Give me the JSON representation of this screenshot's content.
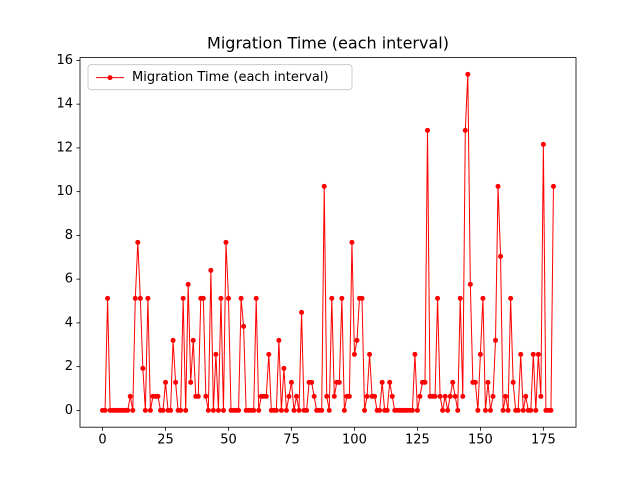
{
  "chart_data": {
    "type": "line",
    "title": "Migration Time  (each interval)",
    "x": [
      0,
      1,
      2,
      3,
      4,
      5,
      6,
      7,
      8,
      9,
      10,
      11,
      12,
      13,
      14,
      15,
      16,
      17,
      18,
      19,
      20,
      21,
      22,
      23,
      24,
      25,
      26,
      27,
      28,
      29,
      30,
      31,
      32,
      33,
      34,
      35,
      36,
      37,
      38,
      39,
      40,
      41,
      42,
      43,
      44,
      45,
      46,
      47,
      48,
      49,
      50,
      51,
      52,
      53,
      54,
      55,
      56,
      57,
      58,
      59,
      60,
      61,
      62,
      63,
      64,
      65,
      66,
      67,
      68,
      69,
      70,
      71,
      72,
      73,
      74,
      75,
      76,
      77,
      78,
      79,
      80,
      81,
      82,
      83,
      84,
      85,
      86,
      87,
      88,
      89,
      90,
      91,
      92,
      93,
      94,
      95,
      96,
      97,
      98,
      99,
      100,
      101,
      102,
      103,
      104,
      105,
      106,
      107,
      108,
      109,
      110,
      111,
      112,
      113,
      114,
      115,
      116,
      117,
      118,
      119,
      120,
      121,
      122,
      123,
      124,
      125,
      126,
      127,
      128,
      129,
      130,
      131,
      132,
      133,
      134,
      135,
      136,
      137,
      138,
      139,
      140,
      141,
      142,
      143,
      144,
      145,
      146,
      147,
      148,
      149,
      150,
      151,
      152,
      153,
      154,
      155,
      156,
      157,
      158,
      159,
      160,
      161,
      162,
      163,
      164,
      165,
      166,
      167,
      168,
      169,
      170,
      171,
      172,
      173,
      174,
      175,
      176,
      177,
      178,
      179
    ],
    "series": [
      {
        "name": "Migration Time  (each interval)",
        "color": "#ff0000",
        "values": [
          0,
          0,
          5.12,
          0,
          0,
          0,
          0,
          0,
          0,
          0,
          0,
          0.64,
          0,
          5.12,
          7.68,
          5.12,
          1.92,
          0,
          5.12,
          0,
          0.64,
          0.64,
          0.64,
          0,
          0,
          1.28,
          0,
          0,
          3.2,
          1.28,
          0,
          0,
          5.12,
          0,
          5.76,
          1.28,
          3.2,
          0.64,
          0.64,
          5.12,
          5.12,
          0.64,
          0,
          6.4,
          0,
          2.56,
          0,
          5.12,
          0,
          7.68,
          5.12,
          0,
          0,
          0,
          0,
          5.12,
          3.84,
          0,
          0,
          0,
          0,
          5.12,
          0,
          0.64,
          0.64,
          0.64,
          2.56,
          0,
          0,
          0,
          3.2,
          0,
          1.92,
          0,
          0.64,
          1.28,
          0,
          0.64,
          0,
          4.48,
          0,
          0,
          1.28,
          1.28,
          0.64,
          0,
          0,
          0,
          10.24,
          0.64,
          0,
          5.12,
          0.64,
          1.28,
          1.28,
          5.12,
          0,
          0.64,
          0.64,
          7.68,
          2.56,
          3.2,
          5.12,
          5.12,
          0,
          0.64,
          2.56,
          0.64,
          0.64,
          0,
          0,
          1.28,
          0,
          0,
          1.28,
          0.64,
          0,
          0,
          0,
          0,
          0,
          0,
          0,
          0,
          2.56,
          0,
          0.64,
          1.28,
          1.28,
          12.8,
          0.64,
          0.64,
          0.64,
          5.12,
          0.64,
          0,
          0.64,
          0,
          0.64,
          1.28,
          0.64,
          0,
          5.12,
          0.64,
          12.8,
          15.36,
          5.76,
          1.28,
          1.28,
          0,
          2.56,
          5.12,
          0,
          1.28,
          0,
          0.64,
          3.2,
          10.24,
          7.04,
          0,
          0.64,
          0,
          5.12,
          1.28,
          0,
          0,
          2.56,
          0,
          0.64,
          0,
          0,
          2.56,
          0,
          2.56,
          0.64,
          12.16,
          0,
          0,
          0,
          10.24
        ]
      }
    ],
    "xlim": [
      -8.95,
      187.95
    ],
    "xticks": [
      0,
      25,
      50,
      75,
      100,
      125,
      150,
      175
    ],
    "ylim": [
      -0.768,
      16.128
    ],
    "yticks": [
      0,
      2,
      4,
      6,
      8,
      10,
      12,
      14,
      16
    ],
    "legend": "upper left",
    "grid": false
  }
}
